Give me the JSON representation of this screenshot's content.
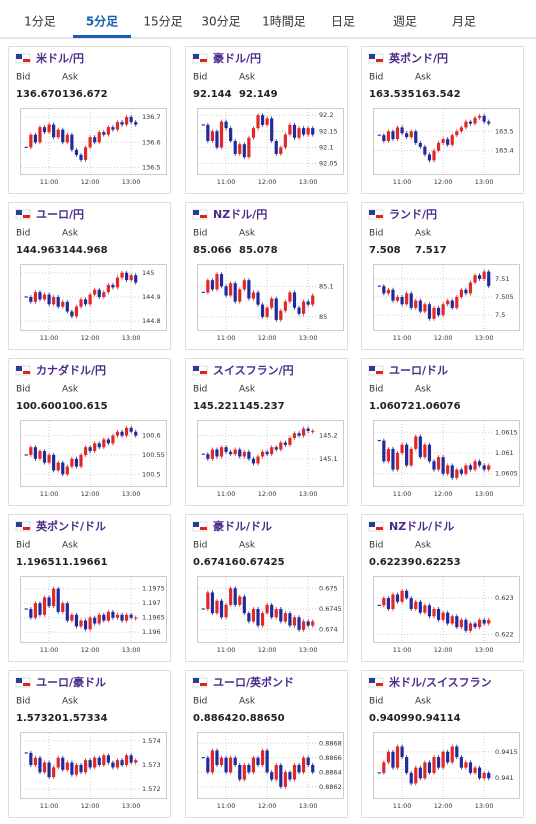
{
  "tabs": [
    "1分足",
    "5分足",
    "15分足",
    "30分足",
    "1時間足",
    "日足",
    "週足",
    "月足"
  ],
  "active_tab": 1,
  "cards": [
    {
      "title": "米ドル/円",
      "bid_label": "Bid",
      "ask_label": "Ask",
      "bid": "136.670",
      "ask": "136.672",
      "chart": {
        "type": "candlestick",
        "ylim": [
          136.49,
          136.72
        ],
        "yticks": [
          136.5,
          136.6,
          136.7
        ],
        "xticks": [
          {
            "value": 5,
            "label": "11:00"
          },
          {
            "value": 14,
            "label": "12:00"
          },
          {
            "value": 23,
            "label": "13:00"
          }
        ],
        "close": [
          136.58,
          136.63,
          136.6,
          136.66,
          136.64,
          136.67,
          136.62,
          136.65,
          136.6,
          136.63,
          136.57,
          136.55,
          136.53,
          136.58,
          136.62,
          136.6,
          136.64,
          136.63,
          136.66,
          136.65,
          136.68,
          136.67,
          136.7,
          136.68,
          136.67
        ]
      }
    },
    {
      "title": "豪ドル/円",
      "bid_label": "Bid",
      "ask_label": "Ask",
      "bid": "92.144",
      "ask": "92.149",
      "chart": {
        "type": "candlestick",
        "ylim": [
          92.03,
          92.21
        ],
        "yticks": [
          92.05,
          92.1,
          92.15,
          92.2
        ],
        "xticks": [
          {
            "value": 5,
            "label": "11:00"
          },
          {
            "value": 14,
            "label": "12:00"
          },
          {
            "value": 23,
            "label": "13:00"
          }
        ],
        "close": [
          92.17,
          92.12,
          92.15,
          92.1,
          92.18,
          92.16,
          92.12,
          92.08,
          92.11,
          92.07,
          92.13,
          92.16,
          92.2,
          92.17,
          92.19,
          92.12,
          92.08,
          92.1,
          92.14,
          92.17,
          92.13,
          92.16,
          92.14,
          92.16,
          92.14
        ]
      }
    },
    {
      "title": "英ポンド/円",
      "bid_label": "Bid",
      "ask_label": "Ask",
      "bid": "163.535",
      "ask": "163.542",
      "chart": {
        "type": "candlestick",
        "ylim": [
          163.3,
          163.6
        ],
        "yticks": [
          163.4,
          163.5
        ],
        "xticks": [
          {
            "value": 5,
            "label": "11:00"
          },
          {
            "value": 14,
            "label": "12:00"
          },
          {
            "value": 23,
            "label": "13:00"
          }
        ],
        "close": [
          163.48,
          163.45,
          163.5,
          163.46,
          163.52,
          163.49,
          163.47,
          163.5,
          163.44,
          163.42,
          163.38,
          163.35,
          163.4,
          163.44,
          163.46,
          163.43,
          163.48,
          163.5,
          163.52,
          163.55,
          163.54,
          163.57,
          163.58,
          163.55,
          163.54
        ]
      }
    },
    {
      "title": "ユーロ/円",
      "bid_label": "Bid",
      "ask_label": "Ask",
      "bid": "144.963",
      "ask": "144.968",
      "chart": {
        "type": "candlestick",
        "ylim": [
          144.78,
          145.02
        ],
        "yticks": [
          144.8,
          144.9,
          145
        ],
        "xticks": [
          {
            "value": 5,
            "label": "11:00"
          },
          {
            "value": 14,
            "label": "12:00"
          },
          {
            "value": 23,
            "label": "13:00"
          }
        ],
        "close": [
          144.9,
          144.88,
          144.92,
          144.89,
          144.91,
          144.87,
          144.9,
          144.86,
          144.88,
          144.84,
          144.82,
          144.86,
          144.89,
          144.87,
          144.91,
          144.93,
          144.9,
          144.92,
          144.95,
          144.94,
          144.98,
          145.0,
          144.97,
          144.99,
          144.96
        ]
      }
    },
    {
      "title": "NZドル/円",
      "bid_label": "Bid",
      "ask_label": "Ask",
      "bid": "85.066",
      "ask": "85.078",
      "chart": {
        "type": "candlestick",
        "ylim": [
          84.97,
          85.16
        ],
        "yticks": [
          85,
          85.1
        ],
        "xticks": [
          {
            "value": 5,
            "label": "11:00"
          },
          {
            "value": 14,
            "label": "12:00"
          },
          {
            "value": 23,
            "label": "13:00"
          }
        ],
        "close": [
          85.08,
          85.12,
          85.09,
          85.14,
          85.1,
          85.07,
          85.11,
          85.05,
          85.09,
          85.12,
          85.06,
          85.08,
          85.04,
          85.0,
          85.03,
          85.06,
          84.99,
          85.02,
          85.05,
          85.08,
          85.03,
          85.01,
          85.05,
          85.04,
          85.07
        ]
      }
    },
    {
      "title": "ランド/円",
      "bid_label": "Bid",
      "ask_label": "Ask",
      "bid": "7.508",
      "ask": "7.517",
      "chart": {
        "type": "candlestick",
        "ylim": [
          7.497,
          7.513
        ],
        "yticks": [
          7.5,
          7.505,
          7.51
        ],
        "xticks": [
          {
            "value": 5,
            "label": "11:00"
          },
          {
            "value": 14,
            "label": "12:00"
          },
          {
            "value": 23,
            "label": "13:00"
          }
        ],
        "close": [
          7.508,
          7.506,
          7.507,
          7.504,
          7.505,
          7.503,
          7.506,
          7.502,
          7.504,
          7.501,
          7.503,
          7.499,
          7.502,
          7.5,
          7.503,
          7.504,
          7.502,
          7.505,
          7.507,
          7.506,
          7.509,
          7.511,
          7.51,
          7.512,
          7.508
        ]
      }
    },
    {
      "title": "カナダドル/円",
      "bid_label": "Bid",
      "ask_label": "Ask",
      "bid": "100.600",
      "ask": "100.615",
      "chart": {
        "type": "candlestick",
        "ylim": [
          100.48,
          100.63
        ],
        "yticks": [
          100.5,
          100.55,
          100.6
        ],
        "xticks": [
          {
            "value": 5,
            "label": "11:00"
          },
          {
            "value": 14,
            "label": "12:00"
          },
          {
            "value": 23,
            "label": "13:00"
          }
        ],
        "close": [
          100.55,
          100.57,
          100.54,
          100.56,
          100.53,
          100.55,
          100.51,
          100.53,
          100.5,
          100.52,
          100.54,
          100.52,
          100.55,
          100.57,
          100.56,
          100.58,
          100.57,
          100.59,
          100.58,
          100.6,
          100.61,
          100.6,
          100.62,
          100.61,
          100.6
        ]
      }
    },
    {
      "title": "スイスフラン/円",
      "bid_label": "Bid",
      "ask_label": "Ask",
      "bid": "145.221",
      "ask": "145.237",
      "chart": {
        "type": "candlestick",
        "ylim": [
          145.0,
          145.25
        ],
        "yticks": [
          145.1,
          145.2
        ],
        "xticks": [
          {
            "value": 5,
            "label": "11:00"
          },
          {
            "value": 14,
            "label": "12:00"
          },
          {
            "value": 23,
            "label": "13:00"
          }
        ],
        "close": [
          145.12,
          145.1,
          145.14,
          145.11,
          145.15,
          145.13,
          145.12,
          145.14,
          145.11,
          145.13,
          145.1,
          145.08,
          145.11,
          145.13,
          145.12,
          145.15,
          145.14,
          145.17,
          145.16,
          145.19,
          145.21,
          145.2,
          145.23,
          145.22,
          145.22
        ]
      }
    },
    {
      "title": "ユーロ/ドル",
      "bid_label": "Bid",
      "ask_label": "Ask",
      "bid": "1.06072",
      "ask": "1.06076",
      "chart": {
        "type": "candlestick",
        "ylim": [
          1.0603,
          1.0617
        ],
        "yticks": [
          1.0605,
          1.061,
          1.0615
        ],
        "xticks": [
          {
            "value": 5,
            "label": "11:00"
          },
          {
            "value": 14,
            "label": "12:00"
          },
          {
            "value": 23,
            "label": "13:00"
          }
        ],
        "close": [
          1.0613,
          1.0608,
          1.0611,
          1.0606,
          1.061,
          1.0612,
          1.0607,
          1.0611,
          1.0614,
          1.0609,
          1.0612,
          1.0608,
          1.0606,
          1.0609,
          1.0605,
          1.0607,
          1.0604,
          1.0606,
          1.0605,
          1.0607,
          1.0606,
          1.0608,
          1.0607,
          1.0606,
          1.0607
        ]
      }
    },
    {
      "title": "英ポンド/ドル",
      "bid_label": "Bid",
      "ask_label": "Ask",
      "bid": "1.19651",
      "ask": "1.19661",
      "chart": {
        "type": "candlestick",
        "ylim": [
          1.1958,
          1.1978
        ],
        "yticks": [
          1.196,
          1.1965,
          1.197,
          1.1975
        ],
        "xticks": [
          {
            "value": 5,
            "label": "11:00"
          },
          {
            "value": 14,
            "label": "12:00"
          },
          {
            "value": 23,
            "label": "13:00"
          }
        ],
        "close": [
          1.1968,
          1.1965,
          1.197,
          1.1966,
          1.1972,
          1.1969,
          1.1975,
          1.1967,
          1.197,
          1.1964,
          1.1966,
          1.1962,
          1.1964,
          1.1961,
          1.1965,
          1.1963,
          1.1966,
          1.1964,
          1.1967,
          1.1965,
          1.1966,
          1.1964,
          1.1966,
          1.1965,
          1.1965
        ]
      }
    },
    {
      "title": "豪ドル/ドル",
      "bid_label": "Bid",
      "ask_label": "Ask",
      "bid": "0.67416",
      "ask": "0.67425",
      "chart": {
        "type": "candlestick",
        "ylim": [
          0.6738,
          0.6752
        ],
        "yticks": [
          0.674,
          0.6745,
          0.675
        ],
        "xticks": [
          {
            "value": 5,
            "label": "11:00"
          },
          {
            "value": 14,
            "label": "12:00"
          },
          {
            "value": 23,
            "label": "13:00"
          }
        ],
        "close": [
          0.6745,
          0.6749,
          0.6744,
          0.6747,
          0.6743,
          0.6746,
          0.675,
          0.6746,
          0.6748,
          0.6744,
          0.6742,
          0.6745,
          0.6741,
          0.6744,
          0.6746,
          0.6743,
          0.6745,
          0.6742,
          0.6744,
          0.6741,
          0.6743,
          0.674,
          0.6742,
          0.6741,
          0.6742
        ]
      }
    },
    {
      "title": "NZドル/ドル",
      "bid_label": "Bid",
      "ask_label": "Ask",
      "bid": "0.62239",
      "ask": "0.62253",
      "chart": {
        "type": "candlestick",
        "ylim": [
          0.6219,
          0.6235
        ],
        "yticks": [
          0.622,
          0.623
        ],
        "xticks": [
          {
            "value": 5,
            "label": "11:00"
          },
          {
            "value": 14,
            "label": "12:00"
          },
          {
            "value": 23,
            "label": "13:00"
          }
        ],
        "close": [
          0.6228,
          0.623,
          0.6227,
          0.6231,
          0.6229,
          0.6232,
          0.623,
          0.6227,
          0.6229,
          0.6226,
          0.6228,
          0.6225,
          0.6227,
          0.6224,
          0.6226,
          0.6223,
          0.6225,
          0.6222,
          0.6224,
          0.6221,
          0.6223,
          0.6222,
          0.6224,
          0.6223,
          0.6224
        ]
      }
    },
    {
      "title": "ユーロ/豪ドル",
      "bid_label": "Bid",
      "ask_label": "Ask",
      "bid": "1.57320",
      "ask": "1.57334",
      "chart": {
        "type": "candlestick",
        "ylim": [
          1.5718,
          1.5742
        ],
        "yticks": [
          1.572,
          1.573,
          1.574
        ],
        "xticks": [
          {
            "value": 5,
            "label": "11:00"
          },
          {
            "value": 14,
            "label": "12:00"
          },
          {
            "value": 23,
            "label": "13:00"
          }
        ],
        "close": [
          1.5735,
          1.573,
          1.5733,
          1.5727,
          1.5731,
          1.5725,
          1.5729,
          1.5733,
          1.5728,
          1.5731,
          1.5726,
          1.573,
          1.5727,
          1.5732,
          1.5729,
          1.5733,
          1.573,
          1.5734,
          1.5731,
          1.5729,
          1.5732,
          1.573,
          1.5734,
          1.5731,
          1.5732
        ]
      }
    },
    {
      "title": "ユーロ/英ポンド",
      "bid_label": "Bid",
      "ask_label": "Ask",
      "bid": "0.88642",
      "ask": "0.88650",
      "chart": {
        "type": "candlestick",
        "ylim": [
          0.8861,
          0.8869
        ],
        "yticks": [
          0.8862,
          0.8864,
          0.8866,
          0.8868
        ],
        "xticks": [
          {
            "value": 5,
            "label": "11:00"
          },
          {
            "value": 14,
            "label": "12:00"
          },
          {
            "value": 23,
            "label": "13:00"
          }
        ],
        "close": [
          0.8866,
          0.8864,
          0.8867,
          0.8865,
          0.8866,
          0.8864,
          0.8866,
          0.8865,
          0.8863,
          0.8865,
          0.8864,
          0.8866,
          0.8865,
          0.8867,
          0.8864,
          0.8863,
          0.8865,
          0.8862,
          0.8864,
          0.8863,
          0.8865,
          0.8864,
          0.8866,
          0.8865,
          0.8864
        ]
      }
    },
    {
      "title": "米ドル/スイスフラン",
      "bid_label": "Bid",
      "ask_label": "Ask",
      "bid": "0.94099",
      "ask": "0.94114",
      "chart": {
        "type": "candlestick",
        "ylim": [
          0.9407,
          0.9418
        ],
        "yticks": [
          0.941,
          0.9415
        ],
        "xticks": [
          {
            "value": 5,
            "label": "11:00"
          },
          {
            "value": 14,
            "label": "12:00"
          },
          {
            "value": 23,
            "label": "13:00"
          }
        ],
        "close": [
          0.9411,
          0.9413,
          0.9415,
          0.9412,
          0.9416,
          0.9414,
          0.9411,
          0.9409,
          0.9412,
          0.941,
          0.9413,
          0.9411,
          0.9414,
          0.9412,
          0.9415,
          0.9413,
          0.9416,
          0.9414,
          0.9412,
          0.9413,
          0.9411,
          0.9412,
          0.941,
          0.9411,
          0.941
        ]
      }
    }
  ]
}
